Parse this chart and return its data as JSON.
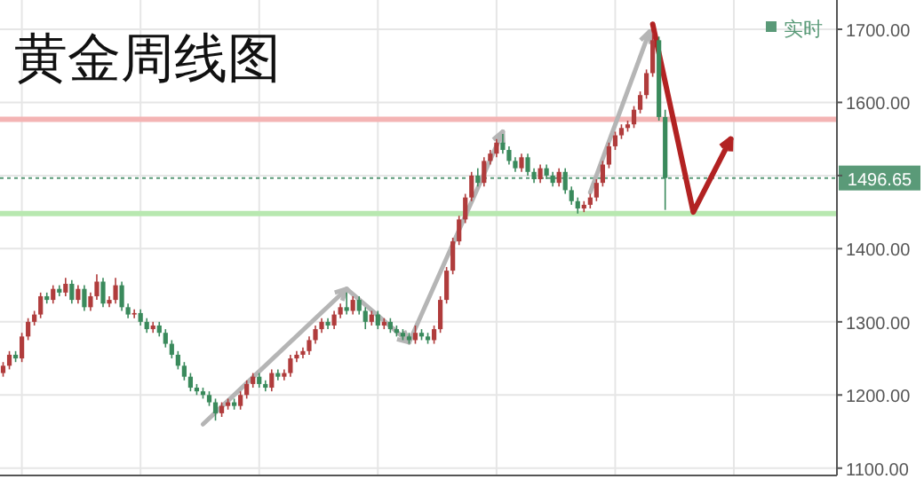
{
  "chart_data": {
    "type": "candlestick",
    "title": "黄金周线图",
    "categories": [
      null,
      null,
      null,
      null,
      null,
      null,
      null,
      null,
      null,
      null,
      null,
      null,
      null,
      null,
      null,
      null,
      null,
      null,
      null,
      null,
      null,
      null,
      null,
      null,
      null,
      null,
      null,
      null,
      null,
      null,
      null,
      null,
      null,
      null,
      null,
      null,
      null,
      null,
      null,
      null,
      null,
      null,
      null,
      null,
      null,
      null,
      null,
      null,
      null,
      null,
      null,
      null,
      null,
      null,
      null,
      null,
      null,
      null,
      null,
      null,
      null,
      null,
      null,
      null,
      null,
      null,
      null,
      null,
      null,
      null,
      null,
      null,
      null,
      null,
      null,
      null,
      null,
      null,
      null,
      null,
      null,
      null,
      null,
      null,
      null,
      null,
      null,
      null,
      null,
      null,
      null,
      null,
      null,
      null,
      null,
      null,
      null,
      null,
      null,
      null,
      null,
      null,
      null,
      null,
      null,
      null,
      null,
      null,
      null,
      null,
      null,
      null,
      null,
      null,
      null,
      null,
      null,
      null,
      null,
      null,
      null,
      null,
      null,
      null,
      null,
      null,
      null,
      null,
      null,
      null,
      null,
      null,
      null,
      null
    ],
    "annotations": [
      "实时"
    ],
    "colors": [
      "#b03c3c",
      "#b03c3c",
      "#3a8a5c",
      "#b03c3c",
      "#b03c3c",
      "#b03c3c",
      "#b03c3c",
      "#3a8a5c",
      "#b03c3c",
      "#3a8a5c",
      "#b03c3c",
      "#3a8a5c",
      "#b03c3c",
      "#3a8a5c",
      "#b03c3c",
      "#b03c3c",
      "#3a8a5c",
      "#b03c3c",
      "#b03c3c",
      "#3a8a5c",
      "#3a8a5c",
      "#b03c3c",
      "#3a8a5c",
      "#3a8a5c",
      "#b03c3c",
      "#3a8a5c",
      "#3a8a5c",
      "#3a8a5c",
      "#3a8a5c",
      "#3a8a5c",
      "#3a8a5c",
      "#3a8a5c",
      "#3a8a5c",
      "#3a8a5c",
      "#3a8a5c",
      "#b03c3c",
      "#b03c3c",
      "#3a8a5c",
      "#b03c3c",
      "#b03c3c",
      "#b03c3c",
      "#3a8a5c",
      "#3a8a5c",
      "#b03c3c",
      "#3a8a5c",
      "#b03c3c",
      "#b03c3c",
      "#b03c3c",
      "#b03c3c",
      "#b03c3c",
      "#b03c3c",
      "#b03c3c",
      "#3a8a5c",
      "#b03c3c",
      "#b03c3c",
      "#3a8a5c",
      "#b03c3c",
      "#3a8a5c",
      "#3a8a5c",
      "#b03c3c",
      "#3a8a5c",
      "#b03c3c",
      "#3a8a5c",
      "#3a8a5c",
      "#3a8a5c",
      "#3a8a5c",
      "#b03c3c",
      "#3a8a5c",
      "#3a8a5c",
      "#b03c3c",
      "#b03c3c",
      "#b03c3c",
      "#b03c3c",
      "#b03c3c",
      "#b03c3c",
      "#b03c3c",
      "#3a8a5c",
      "#b03c3c",
      "#b03c3c",
      "#b03c3c",
      "#3a8a5c",
      "#3a8a5c",
      "#3a8a5c",
      "#b03c3c",
      "#3a8a5c",
      "#3a8a5c",
      "#b03c3c",
      "#3a8a5c",
      "#3a8a5c",
      "#b03c3c",
      "#3a8a5c",
      "#3a8a5c",
      "#3a8a5c",
      "#b03c3c",
      "#b03c3c",
      "#b03c3c",
      "#b03c3c",
      "#b03c3c",
      "#b03c3c",
      "#b03c3c",
      "#b03c3c",
      "#b03c3c",
      "#b03c3c",
      "#b03c3c",
      "#b03c3c",
      "#3a8a5c",
      "#3a8a5c",
      null,
      null,
      null,
      null,
      null,
      null,
      null,
      null,
      null,
      null,
      null,
      null,
      null,
      null,
      null,
      null,
      null,
      null,
      null,
      null,
      null,
      null,
      null,
      null,
      null,
      null,
      null
    ],
    "ohlc": [
      [
        1230,
        1245,
        1225,
        1240
      ],
      [
        1240,
        1260,
        1235,
        1255
      ],
      [
        1255,
        1260,
        1245,
        1250
      ],
      [
        1250,
        1285,
        1245,
        1280
      ],
      [
        1280,
        1305,
        1275,
        1300
      ],
      [
        1300,
        1315,
        1295,
        1310
      ],
      [
        1310,
        1340,
        1305,
        1335
      ],
      [
        1335,
        1340,
        1325,
        1330
      ],
      [
        1330,
        1350,
        1325,
        1345
      ],
      [
        1345,
        1350,
        1335,
        1340
      ],
      [
        1340,
        1360,
        1335,
        1352
      ],
      [
        1352,
        1357,
        1325,
        1330
      ],
      [
        1330,
        1350,
        1325,
        1345
      ],
      [
        1345,
        1350,
        1315,
        1320
      ],
      [
        1320,
        1340,
        1315,
        1335
      ],
      [
        1335,
        1365,
        1330,
        1355
      ],
      [
        1355,
        1360,
        1320,
        1325
      ],
      [
        1325,
        1335,
        1320,
        1330
      ],
      [
        1330,
        1360,
        1325,
        1350
      ],
      [
        1350,
        1355,
        1315,
        1320
      ],
      [
        1320,
        1325,
        1305,
        1310
      ],
      [
        1310,
        1317,
        1305,
        1312
      ],
      [
        1312,
        1317,
        1295,
        1300
      ],
      [
        1300,
        1305,
        1285,
        1290
      ],
      [
        1290,
        1300,
        1285,
        1295
      ],
      [
        1295,
        1300,
        1280,
        1285
      ],
      [
        1285,
        1290,
        1265,
        1270
      ],
      [
        1270,
        1275,
        1250,
        1255
      ],
      [
        1255,
        1260,
        1235,
        1240
      ],
      [
        1240,
        1245,
        1220,
        1225
      ],
      [
        1225,
        1230,
        1205,
        1210
      ],
      [
        1210,
        1215,
        1200,
        1205
      ],
      [
        1205,
        1210,
        1195,
        1200
      ],
      [
        1200,
        1205,
        1185,
        1190
      ],
      [
        1190,
        1195,
        1165,
        1175
      ],
      [
        1175,
        1190,
        1170,
        1185
      ],
      [
        1185,
        1195,
        1180,
        1190
      ],
      [
        1190,
        1195,
        1180,
        1185
      ],
      [
        1185,
        1205,
        1180,
        1200
      ],
      [
        1200,
        1220,
        1195,
        1215
      ],
      [
        1215,
        1230,
        1210,
        1225
      ],
      [
        1225,
        1230,
        1210,
        1215
      ],
      [
        1215,
        1220,
        1205,
        1210
      ],
      [
        1210,
        1235,
        1205,
        1230
      ],
      [
        1230,
        1235,
        1220,
        1225
      ],
      [
        1225,
        1235,
        1220,
        1230
      ],
      [
        1230,
        1255,
        1225,
        1250
      ],
      [
        1250,
        1260,
        1245,
        1255
      ],
      [
        1255,
        1265,
        1250,
        1260
      ],
      [
        1260,
        1280,
        1255,
        1275
      ],
      [
        1275,
        1295,
        1270,
        1290
      ],
      [
        1290,
        1305,
        1285,
        1300
      ],
      [
        1300,
        1305,
        1290,
        1295
      ],
      [
        1295,
        1315,
        1290,
        1310
      ],
      [
        1310,
        1325,
        1305,
        1320
      ],
      [
        1320,
        1340,
        1310,
        1315
      ],
      [
        1315,
        1335,
        1310,
        1330
      ],
      [
        1330,
        1335,
        1310,
        1315
      ],
      [
        1315,
        1320,
        1290,
        1300
      ],
      [
        1300,
        1315,
        1295,
        1310
      ],
      [
        1310,
        1315,
        1290,
        1295
      ],
      [
        1295,
        1305,
        1290,
        1300
      ],
      [
        1300,
        1305,
        1285,
        1290
      ],
      [
        1290,
        1295,
        1280,
        1285
      ],
      [
        1285,
        1290,
        1275,
        1280
      ],
      [
        1280,
        1285,
        1270,
        1275
      ],
      [
        1275,
        1295,
        1270,
        1285
      ],
      [
        1285,
        1290,
        1275,
        1280
      ],
      [
        1280,
        1285,
        1270,
        1275
      ],
      [
        1275,
        1295,
        1270,
        1290
      ],
      [
        1290,
        1335,
        1285,
        1330
      ],
      [
        1330,
        1375,
        1325,
        1370
      ],
      [
        1370,
        1415,
        1365,
        1410
      ],
      [
        1410,
        1445,
        1405,
        1440
      ],
      [
        1440,
        1475,
        1435,
        1470
      ],
      [
        1470,
        1505,
        1465,
        1500
      ],
      [
        1500,
        1510,
        1485,
        1490
      ],
      [
        1490,
        1525,
        1485,
        1520
      ],
      [
        1520,
        1535,
        1515,
        1530
      ],
      [
        1530,
        1550,
        1525,
        1545
      ],
      [
        1545,
        1557,
        1530,
        1535
      ],
      [
        1535,
        1540,
        1515,
        1520
      ],
      [
        1520,
        1525,
        1505,
        1510
      ],
      [
        1510,
        1530,
        1505,
        1525
      ],
      [
        1525,
        1530,
        1500,
        1505
      ],
      [
        1505,
        1510,
        1490,
        1495
      ],
      [
        1495,
        1515,
        1490,
        1510
      ],
      [
        1510,
        1515,
        1495,
        1500
      ],
      [
        1500,
        1505,
        1485,
        1490
      ],
      [
        1490,
        1510,
        1485,
        1505
      ],
      [
        1505,
        1510,
        1475,
        1480
      ],
      [
        1480,
        1485,
        1460,
        1465
      ],
      [
        1465,
        1470,
        1448,
        1455
      ],
      [
        1455,
        1465,
        1450,
        1460
      ],
      [
        1460,
        1475,
        1455,
        1470
      ],
      [
        1470,
        1495,
        1465,
        1490
      ],
      [
        1490,
        1520,
        1485,
        1515
      ],
      [
        1515,
        1545,
        1510,
        1540
      ],
      [
        1540,
        1560,
        1535,
        1555
      ],
      [
        1555,
        1570,
        1550,
        1565
      ],
      [
        1565,
        1575,
        1560,
        1570
      ],
      [
        1570,
        1595,
        1565,
        1590
      ],
      [
        1590,
        1615,
        1585,
        1610
      ],
      [
        1610,
        1645,
        1605,
        1640
      ],
      [
        1640,
        1695,
        1635,
        1685
      ],
      [
        1685,
        1690,
        1575,
        1580
      ],
      [
        1580,
        1590,
        1453,
        1496.65
      ],
      null,
      null,
      null,
      null,
      null,
      null,
      null,
      null,
      null,
      null,
      null,
      null,
      null,
      null,
      null,
      null,
      null,
      null,
      null,
      null,
      null,
      null,
      null,
      null,
      null,
      null,
      null
    ],
    "ylim": [
      1090,
      1740
    ],
    "yticks": [
      {
        "value": 1100,
        "label": "1100.00"
      },
      {
        "value": 1200,
        "label": "1200.00"
      },
      {
        "value": 1300,
        "label": "1300.00"
      },
      {
        "value": 1400,
        "label": "1400.00"
      },
      {
        "value": 1500,
        "label": null
      },
      {
        "value": 1600,
        "label": "1600.00"
      },
      {
        "value": 1700,
        "label": "1700.00"
      }
    ],
    "ref_lines": [
      {
        "axis": "y",
        "value": 1577,
        "color": "#f4b4b4",
        "line_style": "solid"
      },
      {
        "axis": "y",
        "value": 1448,
        "color": "#b8e8b0",
        "line_style": "solid"
      },
      {
        "axis": "y",
        "value": 1496.65,
        "label": "1496.65",
        "color": "#5a9a78",
        "line_style": "dotted"
      }
    ],
    "grid": true
  }
}
